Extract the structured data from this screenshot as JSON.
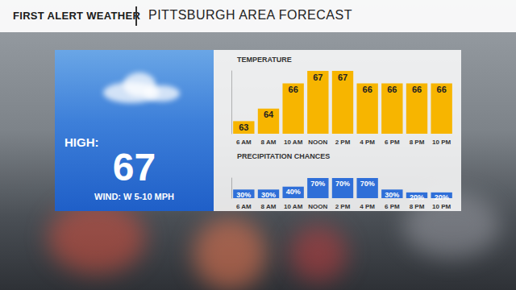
{
  "header": {
    "brand": "FIRST ALERT WEATHER",
    "title": "PITTSBURGH AREA FORECAST"
  },
  "panel": {
    "label": "HIGH:",
    "high": 67,
    "wind": "WIND: W 5-10 MPH"
  },
  "chart_data": [
    {
      "type": "bar",
      "title": "TEMPERATURE",
      "categories": [
        "6 AM",
        "8 AM",
        "10 AM",
        "NOON",
        "2 PM",
        "4 PM",
        "6 PM",
        "8 PM",
        "10 PM"
      ],
      "values": [
        63,
        64,
        66,
        67,
        67,
        66,
        66,
        66,
        66
      ],
      "color": "#f7b500",
      "ylim": [
        62,
        67
      ],
      "data_labels": true,
      "tick_labels": "x"
    },
    {
      "type": "bar",
      "title": "PRECIPITATION CHANCES",
      "categories": [
        "6 AM",
        "8 AM",
        "10 AM",
        "NOON",
        "2 PM",
        "4 PM",
        "6 PM",
        "8 PM",
        "10 PM"
      ],
      "values": [
        30,
        30,
        40,
        70,
        70,
        70,
        30,
        20,
        20
      ],
      "value_labels": [
        "30%",
        "30%",
        "40%",
        "70%",
        "70%",
        "70%",
        "30%",
        "20%",
        "20%"
      ],
      "color": "#2f6fd8",
      "ylim": [
        0,
        70
      ],
      "data_labels": true,
      "tick_labels": "x"
    }
  ]
}
